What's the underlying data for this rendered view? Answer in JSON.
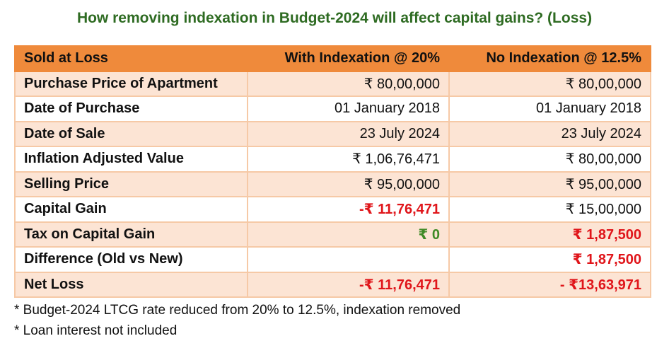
{
  "title": "How removing indexation in Budget-2024 will affect capital gains? (Loss)",
  "table": {
    "headers": [
      "Sold at Loss",
      "With Indexation @ 20%",
      "No Indexation @ 12.5%"
    ],
    "rows": [
      {
        "label": "Purchase Price of Apartment",
        "with": "₹ 80,00,000",
        "without": "₹ 80,00,000"
      },
      {
        "label": "Date of Purchase",
        "with": "01 January 2018",
        "without": "01 January 2018"
      },
      {
        "label": "Date of Sale",
        "with": "23 July 2024",
        "without": "23 July 2024"
      },
      {
        "label": "Inflation Adjusted Value",
        "with": "₹ 1,06,76,471",
        "without": "₹ 80,00,000"
      },
      {
        "label": "Selling Price",
        "with": "₹ 95,00,000",
        "without": "₹ 95,00,000"
      },
      {
        "label": "Capital Gain",
        "with": "-₹ 11,76,471",
        "without": "₹ 15,00,000"
      },
      {
        "label": "Tax on Capital Gain",
        "with": "₹ 0",
        "without": "₹ 1,87,500"
      },
      {
        "label": "Difference (Old vs New)",
        "with": "",
        "without": "₹ 1,87,500"
      },
      {
        "label": "Net Loss",
        "with": "-₹ 11,76,471",
        "without": "- ₹13,63,971"
      }
    ]
  },
  "notes": [
    "* Budget-2024 LTCG rate reduced from 20% to 12.5%, indexation removed",
    "* Loan interest not included"
  ],
  "colors": {
    "title": "#2e6b22",
    "header_bg": "#ef8a3b",
    "row_alt_bg": "#fce4d4",
    "negative_red": "#e0151a",
    "zero_green": "#3f8a26"
  }
}
